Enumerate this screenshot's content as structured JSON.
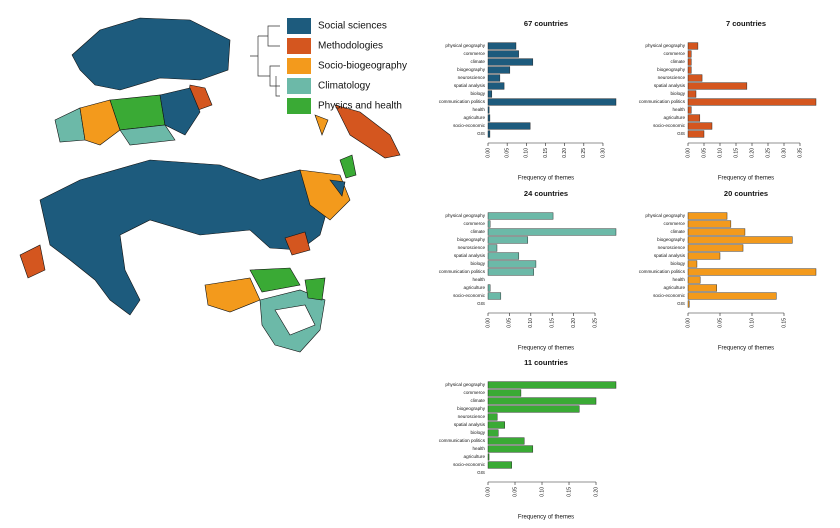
{
  "map_legend": [
    {
      "name": "Social sciences",
      "color": "#1d5b7d"
    },
    {
      "name": "Methodologies",
      "color": "#d4561f"
    },
    {
      "name": "Socio-biogeography",
      "color": "#f39a1c"
    },
    {
      "name": "Climatology",
      "color": "#6cb9a8"
    },
    {
      "name": "Physics and health",
      "color": "#3aaa35"
    }
  ],
  "chart_data": [
    {
      "type": "bar",
      "orientation": "horizontal",
      "title": "67 countries",
      "color": "#1d5b7d",
      "xlabel": "Frequency of themes",
      "categories": [
        "physical geography",
        "commerce",
        "climate",
        "biogeography",
        "neuroscience",
        "spatial analysis",
        "biology",
        "communication politics",
        "health",
        "agriculture",
        "socio-economic",
        "GIS"
      ],
      "values": [
        0.073,
        0.08,
        0.117,
        0.057,
        0.031,
        0.042,
        0.01,
        0.334,
        0.003,
        0.005,
        0.11,
        0.005
      ],
      "xlim": [
        0,
        0.334
      ],
      "xticks": [
        {
          "value": 0,
          "label": "0.00"
        },
        {
          "value": 0.05,
          "label": "0.05"
        },
        {
          "value": 0.1,
          "label": "0.10"
        },
        {
          "value": 0.15,
          "label": "0.15"
        },
        {
          "value": 0.2,
          "label": "0.20"
        },
        {
          "value": 0.25,
          "label": "0.25"
        },
        {
          "value": 0.3,
          "label": "0.30"
        }
      ]
    },
    {
      "type": "bar",
      "orientation": "horizontal",
      "title": "7 countries",
      "color": "#d4561f",
      "xlabel": "Frequency of themes",
      "categories": [
        "physical geography",
        "commerce",
        "climate",
        "biogeography",
        "neuroscience",
        "spatial analysis",
        "biology",
        "communication politics",
        "health",
        "agriculture",
        "socio-economic",
        "GIS"
      ],
      "values": [
        0.031,
        0.01,
        0.01,
        0.01,
        0.044,
        0.184,
        0.025,
        0.4,
        0.01,
        0.037,
        0.075,
        0.05
      ],
      "xlim": [
        0,
        0.4
      ],
      "xticks": [
        {
          "value": 0,
          "label": "0.00"
        },
        {
          "value": 0.05,
          "label": "0.05"
        },
        {
          "value": 0.1,
          "label": "0.10"
        },
        {
          "value": 0.15,
          "label": "0.15"
        },
        {
          "value": 0.2,
          "label": "0.20"
        },
        {
          "value": 0.25,
          "label": "0.25"
        },
        {
          "value": 0.3,
          "label": "0.30"
        },
        {
          "value": 0.35,
          "label": "0.35"
        }
      ]
    },
    {
      "type": "bar",
      "orientation": "horizontal",
      "title": "24 countries",
      "color": "#6cb9a8",
      "xlabel": "Frequency of themes",
      "categories": [
        "physical geography",
        "commerce",
        "climate",
        "biogeography",
        "neuroscience",
        "spatial analysis",
        "biology",
        "communication politics",
        "health",
        "agriculture",
        "socio-economic",
        "GIS"
      ],
      "values": [
        0.152,
        0.005,
        0.299,
        0.093,
        0.021,
        0.072,
        0.112,
        0.107,
        0,
        0.005,
        0.03,
        0
      ],
      "xlim": [
        0,
        0.299
      ],
      "xticks": [
        {
          "value": 0,
          "label": "0.00"
        },
        {
          "value": 0.05,
          "label": "0.05"
        },
        {
          "value": 0.1,
          "label": "0.10"
        },
        {
          "value": 0.15,
          "label": "0.15"
        },
        {
          "value": 0.2,
          "label": "0.20"
        },
        {
          "value": 0.25,
          "label": "0.25"
        }
      ]
    },
    {
      "type": "bar",
      "orientation": "horizontal",
      "title": "20 countries",
      "color": "#f39a1c",
      "xlabel": "Frequency of themes",
      "categories": [
        "physical geography",
        "commerce",
        "climate",
        "biogeography",
        "neuroscience",
        "spatial analysis",
        "biology",
        "communication politics",
        "health",
        "agriculture",
        "socio-economic",
        "GIS"
      ],
      "values": [
        0.061,
        0.067,
        0.089,
        0.163,
        0.086,
        0.05,
        0.014,
        0.2,
        0.019,
        0.045,
        0.138,
        0.002
      ],
      "xlim": [
        0,
        0.2
      ],
      "xticks": [
        {
          "value": 0,
          "label": "0.00"
        },
        {
          "value": 0.05,
          "label": "0.05"
        },
        {
          "value": 0.1,
          "label": "0.10"
        },
        {
          "value": 0.15,
          "label": "0.15"
        }
      ]
    },
    {
      "type": "bar",
      "orientation": "horizontal",
      "title": "11 countries",
      "color": "#3aaa35",
      "xlabel": "Frequency of themes",
      "categories": [
        "physical geography",
        "commerce",
        "climate",
        "biogeography",
        "neuroscience",
        "spatial analysis",
        "biology",
        "communication politics",
        "health",
        "agriculture",
        "socio-economic",
        "GIS"
      ],
      "values": [
        0.237,
        0.061,
        0.2,
        0.169,
        0.017,
        0.031,
        0.019,
        0.067,
        0.083,
        0.002,
        0.044,
        0
      ],
      "xlim": [
        0,
        0.237
      ],
      "xticks": [
        {
          "value": 0,
          "label": "0.00"
        },
        {
          "value": 0.05,
          "label": "0.05"
        },
        {
          "value": 0.1,
          "label": "0.10"
        },
        {
          "value": 0.15,
          "label": "0.15"
        },
        {
          "value": 0.2,
          "label": "0.20"
        }
      ]
    }
  ]
}
